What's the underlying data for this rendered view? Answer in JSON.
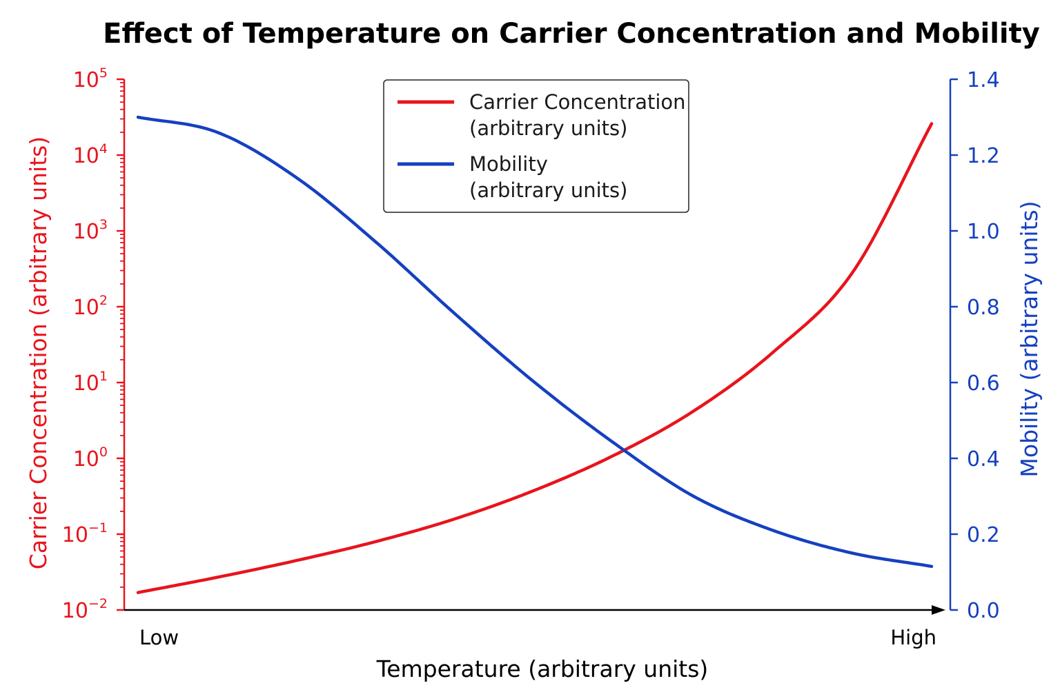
{
  "chart_data": {
    "type": "line",
    "title": "Effect of Temperature on Carrier Concentration and Mobility",
    "xlabel": "Temperature (arbitrary units)",
    "x_tick_labels": [
      "Low",
      "High"
    ],
    "x": [
      0,
      0.1,
      0.2,
      0.3,
      0.4,
      0.5,
      0.6,
      0.7,
      0.8,
      0.9,
      1.0
    ],
    "y_left": {
      "label": "Carrier Concentration (arbitrary units)",
      "scale": "log",
      "ylim": [
        0.01,
        100000
      ],
      "ticks": [
        {
          "base": "10",
          "exp": "−2"
        },
        {
          "base": "10",
          "exp": "−1"
        },
        {
          "base": "10",
          "exp": "0"
        },
        {
          "base": "10",
          "exp": "1"
        },
        {
          "base": "10",
          "exp": "2"
        },
        {
          "base": "10",
          "exp": "3"
        },
        {
          "base": "10",
          "exp": "4"
        },
        {
          "base": "10",
          "exp": "5"
        }
      ],
      "color": "#e8141c"
    },
    "y_right": {
      "label": "Mobility (arbitrary units)",
      "scale": "linear",
      "ylim": [
        0.0,
        1.4
      ],
      "ticks": [
        "0.0",
        "0.2",
        "0.4",
        "0.6",
        "0.8",
        "1.0",
        "1.2",
        "1.4"
      ],
      "color": "#1540c0"
    },
    "series": [
      {
        "name": "Carrier Concentration\n(arbitrary units)",
        "axis": "left",
        "color": "#e8141c",
        "values": [
          0.017,
          0.027,
          0.045,
          0.08,
          0.16,
          0.38,
          1.1,
          4.2,
          25,
          280,
          26000
        ]
      },
      {
        "name": "Mobility\n(arbitrary units)",
        "axis": "right",
        "color": "#1540c0",
        "values": [
          1.3,
          1.26,
          1.14,
          0.97,
          0.78,
          0.6,
          0.44,
          0.3,
          0.21,
          0.15,
          0.115
        ]
      }
    ],
    "legend": "top-center",
    "grid": false
  }
}
